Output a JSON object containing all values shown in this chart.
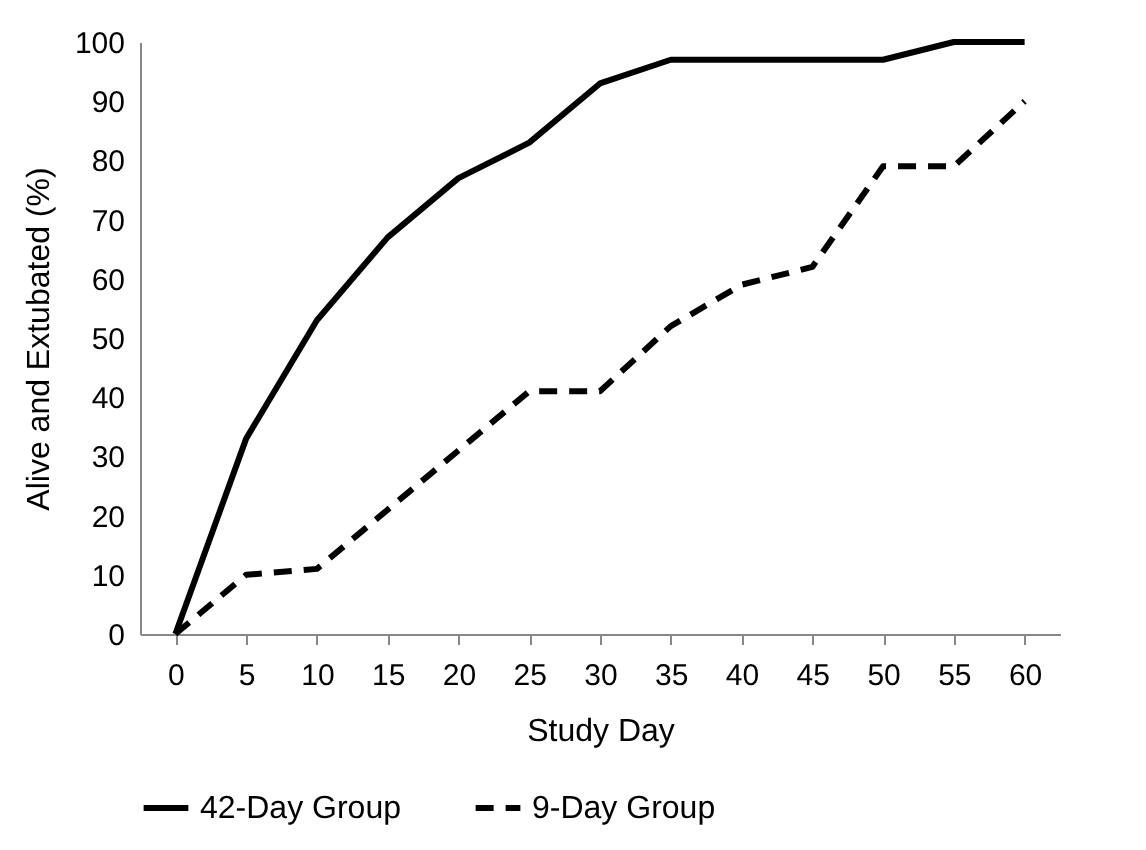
{
  "chart_data": {
    "type": "line",
    "xlabel": "Study Day",
    "ylabel": "Alive and Extubated (%)",
    "categories": [
      "0",
      "5",
      "10",
      "15",
      "20",
      "25",
      "30",
      "35",
      "40",
      "45",
      "50",
      "55",
      "60"
    ],
    "series": [
      {
        "name": "42-Day Group",
        "color": "#000000",
        "line_style": "solid",
        "values": [
          0,
          33,
          53,
          67,
          77,
          83,
          93,
          97,
          97,
          97,
          97,
          100,
          100
        ]
      },
      {
        "name": "9-Day Group",
        "color": "#000000",
        "line_style": "dashed",
        "values": [
          0,
          10,
          11,
          21,
          31,
          41,
          41,
          52,
          59,
          62,
          79,
          79,
          90
        ]
      }
    ],
    "ylim": [
      0,
      100
    ],
    "yticks": [
      0,
      10,
      20,
      30,
      40,
      50,
      60,
      70,
      80,
      90,
      100
    ],
    "grid": false,
    "legend": "bottom",
    "marker": "none"
  }
}
